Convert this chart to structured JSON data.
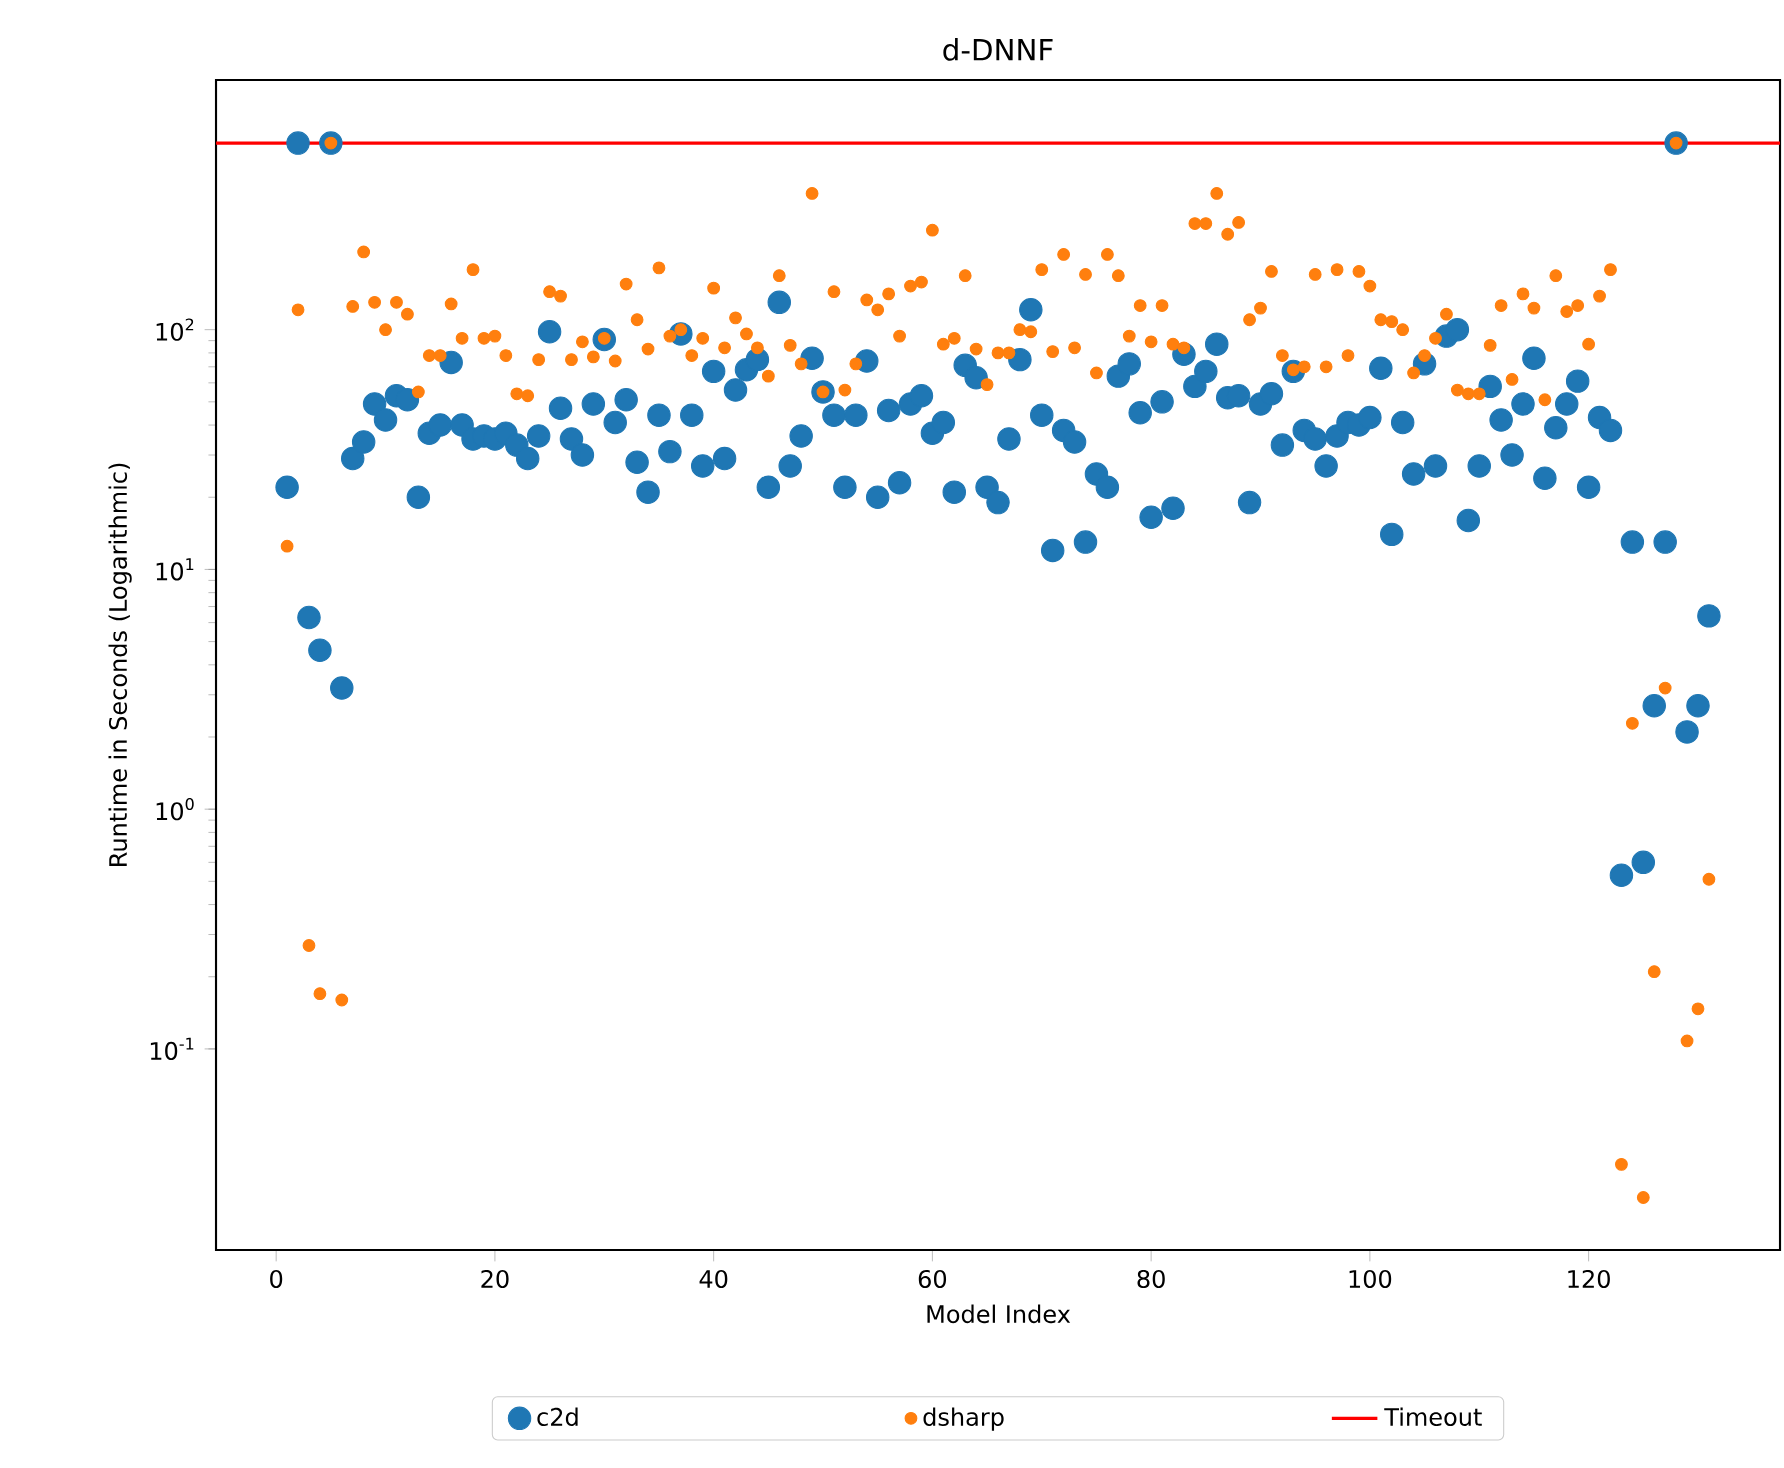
{
  "chart_data": {
    "type": "scatter",
    "title": "d-DNNF",
    "xlabel": "Model Index",
    "ylabel": "Runtime in Seconds (Logarithmic)",
    "x": [
      1,
      2,
      3,
      4,
      5,
      6,
      7,
      8,
      9,
      10,
      11,
      12,
      13,
      14,
      15,
      16,
      17,
      18,
      19,
      20,
      21,
      22,
      23,
      24,
      25,
      26,
      27,
      28,
      29,
      30,
      31,
      32,
      33,
      34,
      35,
      36,
      37,
      38,
      39,
      40,
      41,
      42,
      43,
      44,
      45,
      46,
      47,
      48,
      49,
      50,
      51,
      52,
      53,
      54,
      55,
      56,
      57,
      58,
      59,
      60,
      61,
      62,
      63,
      64,
      65,
      66,
      67,
      68,
      69,
      70,
      71,
      72,
      73,
      74,
      75,
      76,
      77,
      78,
      79,
      80,
      81,
      82,
      83,
      84,
      85,
      86,
      87,
      88,
      89,
      90,
      91,
      92,
      93,
      94,
      95,
      96,
      97,
      98,
      99,
      100,
      101,
      102,
      103,
      104,
      105,
      106,
      107,
      108,
      109,
      110,
      111,
      112,
      113,
      114,
      115,
      116,
      117,
      118,
      119,
      120,
      121,
      122,
      123,
      124,
      125,
      126,
      127,
      128,
      129,
      130,
      131
    ],
    "series": [
      {
        "name": "c2d",
        "color": "#1f77b4",
        "values": [
          22,
          600,
          6.3,
          4.6,
          600,
          3.2,
          29,
          34,
          49,
          42,
          53,
          51,
          20,
          37,
          40,
          73,
          40,
          35,
          36,
          35,
          37,
          33,
          29,
          36,
          98,
          47,
          35,
          30,
          49,
          91,
          41,
          51,
          28,
          21,
          44,
          31,
          96,
          44,
          27,
          67,
          29,
          56,
          68,
          75,
          22,
          130,
          27,
          36,
          76,
          55,
          44,
          22,
          44,
          74,
          20,
          46,
          23,
          49,
          53,
          37,
          41,
          21,
          71,
          63,
          22,
          19,
          35,
          75,
          121,
          44,
          12,
          38,
          34,
          13,
          25,
          22,
          64,
          72,
          45,
          16.5,
          50,
          18,
          79,
          58,
          67,
          87,
          52,
          53,
          19,
          49,
          54,
          33,
          67,
          38,
          35,
          27,
          36,
          41,
          40,
          43,
          69,
          14,
          41,
          25,
          72,
          27,
          94,
          100,
          16,
          27,
          58,
          42,
          30,
          49,
          76,
          24,
          39,
          49,
          61,
          22,
          43,
          38,
          0.53,
          13,
          0.6,
          2.7,
          13,
          600,
          2.1,
          2.7,
          6.4
        ]
      },
      {
        "name": "dsharp",
        "color": "#ff7f0e",
        "values": [
          12.5,
          121,
          0.27,
          0.17,
          600,
          0.16,
          125,
          211,
          130,
          100,
          130,
          116,
          55,
          78,
          78,
          128,
          92,
          178,
          92,
          94,
          78,
          54,
          53,
          75,
          144,
          138,
          75,
          89,
          77,
          92,
          74,
          155,
          110,
          83,
          181,
          94,
          100,
          78,
          92,
          149,
          84,
          112,
          96,
          84,
          64,
          168,
          86,
          72,
          370,
          55,
          144,
          56,
          72,
          133,
          121,
          141,
          94,
          152,
          158,
          260,
          87,
          92,
          168,
          83,
          59,
          80,
          80,
          100,
          98,
          178,
          81,
          206,
          84,
          170,
          66,
          206,
          168,
          94,
          126,
          89,
          126,
          87,
          84,
          277,
          277,
          370,
          250,
          280,
          110,
          123,
          175,
          78,
          68,
          70,
          170,
          70,
          178,
          78,
          175,
          152,
          110,
          108,
          100,
          66,
          78,
          92,
          116,
          56,
          54,
          54,
          86,
          126,
          62,
          141,
          123,
          51,
          168,
          119,
          126,
          87,
          138,
          178,
          0.033,
          2.28,
          0.024,
          0.21,
          3.2,
          600,
          0.108,
          0.147,
          0.51
        ]
      }
    ],
    "xlim": [
      -5.5,
      137.5
    ],
    "ylim": [
      0.0145,
      1100
    ],
    "xticks": [
      0,
      20,
      40,
      60,
      80,
      100,
      120
    ],
    "yticks": [
      {
        "value": 0.1,
        "label": "10$^{-1}$"
      },
      {
        "value": 1,
        "label": "10$^{0}$"
      },
      {
        "value": 10,
        "label": "10$^{1}$"
      },
      {
        "value": 100,
        "label": "10$^{2}$"
      }
    ],
    "log": "y",
    "legend": "bottom",
    "ref_lines": [
      {
        "axis": "y",
        "value": 600,
        "label": "Timeout",
        "color": "#ff0000"
      }
    ]
  }
}
